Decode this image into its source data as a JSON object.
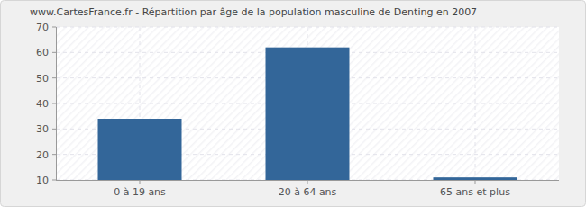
{
  "chart_data": {
    "type": "bar",
    "title": "www.CartesFrance.fr - Répartition par âge de la population masculine de Denting en 2007",
    "categories": [
      "0 à 19 ans",
      "20 à 64 ans",
      "65 ans et plus"
    ],
    "values": [
      34,
      62,
      11
    ],
    "color": "#336699",
    "ylim": [
      10,
      70
    ],
    "yticks": [
      10,
      20,
      30,
      40,
      50,
      60,
      70
    ],
    "grid": true
  }
}
